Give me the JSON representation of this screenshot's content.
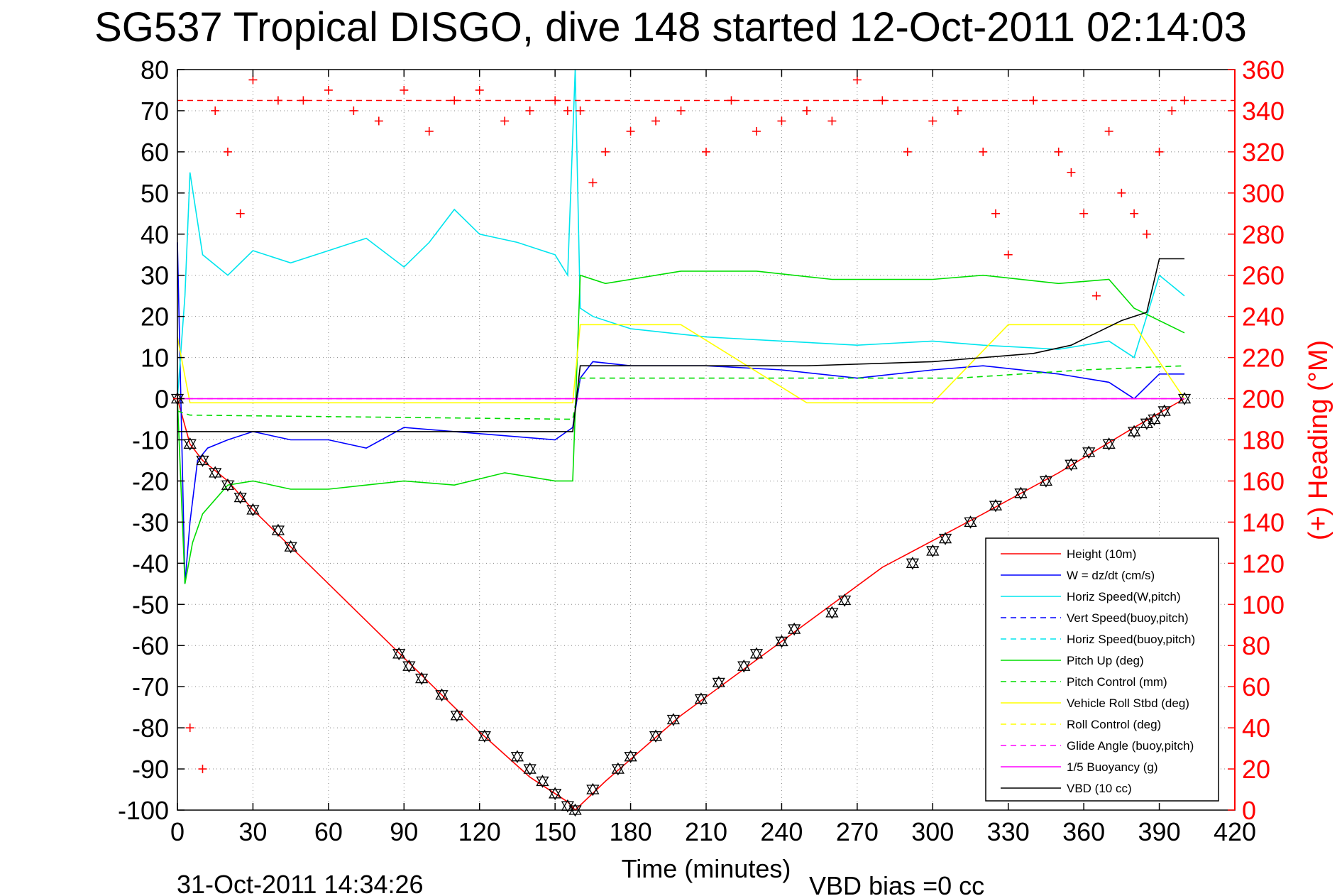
{
  "chart_data": {
    "type": "line",
    "title": "SG537 Tropical DISGO, dive 148 started 12-Oct-2011 02:14:03",
    "xlabel": "Time (minutes)",
    "ylabel_right": "(+) Heading (°M)",
    "xlim": [
      0,
      420
    ],
    "ylim": [
      -100,
      80
    ],
    "ylim_right": [
      0,
      360
    ],
    "x_ticks": [
      "0",
      "30",
      "60",
      "90",
      "120",
      "150",
      "180",
      "210",
      "240",
      "270",
      "300",
      "330",
      "360",
      "390",
      "420"
    ],
    "y_ticks": [
      "-100",
      "-90",
      "-80",
      "-70",
      "-60",
      "-50",
      "-40",
      "-30",
      "-20",
      "-10",
      "0",
      "10",
      "20",
      "30",
      "40",
      "50",
      "60",
      "70",
      "80"
    ],
    "y_ticks_right": [
      "0",
      "20",
      "40",
      "60",
      "80",
      "100",
      "120",
      "140",
      "160",
      "180",
      "200",
      "220",
      "240",
      "260",
      "280",
      "300",
      "320",
      "340",
      "360"
    ],
    "grid": true,
    "legend_position": "bottom-right",
    "footer_left": "31-Oct-2011 14:34:26",
    "footer_right": "VBD bias =0 cc",
    "series": [
      {
        "name": "Height (10m)",
        "color": "#ff0000",
        "style": "solid",
        "x": [
          0,
          5,
          10,
          20,
          30,
          45,
          60,
          90,
          105,
          120,
          140,
          155,
          158,
          170,
          200,
          240,
          280,
          320,
          350,
          380,
          400
        ],
        "y": [
          0,
          -11,
          -15,
          -20,
          -27,
          -36,
          -45,
          -63,
          -72,
          -81,
          -92,
          -98,
          -100,
          -93,
          -77,
          -59,
          -41,
          -28,
          -18,
          -7,
          0
        ]
      },
      {
        "name": "W = dz/dt (cm/s)",
        "color": "#0000ff",
        "style": "solid",
        "x": [
          0,
          3,
          5,
          8,
          12,
          20,
          30,
          45,
          60,
          75,
          90,
          110,
          130,
          150,
          157,
          160,
          165,
          180,
          210,
          240,
          270,
          300,
          320,
          350,
          370,
          380,
          390,
          400
        ],
        "y": [
          38,
          -45,
          -30,
          -15,
          -12,
          -10,
          -8,
          -10,
          -10,
          -12,
          -7,
          -8,
          -9,
          -10,
          -7,
          5,
          9,
          8,
          8,
          7,
          5,
          7,
          8,
          6,
          4,
          0,
          6,
          6
        ]
      },
      {
        "name": "Horiz Speed(W,pitch)",
        "color": "#00e5ee",
        "style": "solid",
        "x": [
          0,
          3,
          5,
          10,
          20,
          30,
          45,
          60,
          75,
          90,
          100,
          110,
          120,
          135,
          150,
          155,
          158,
          160,
          165,
          180,
          210,
          240,
          270,
          300,
          320,
          350,
          370,
          380,
          390,
          400
        ],
        "y": [
          0,
          25,
          55,
          35,
          30,
          36,
          33,
          36,
          39,
          32,
          38,
          46,
          40,
          38,
          35,
          30,
          80,
          22,
          20,
          17,
          15,
          14,
          13,
          14,
          13,
          12,
          14,
          10,
          30,
          25
        ]
      },
      {
        "name": "Vert Speed(buoy,pitch)",
        "color": "#0000ff",
        "style": "dashed",
        "x": [],
        "y": []
      },
      {
        "name": "Horiz Speed(buoy,pitch)",
        "color": "#00e5ee",
        "style": "dashed",
        "x": [],
        "y": []
      },
      {
        "name": "Pitch Up (deg)",
        "color": "#00dd00",
        "style": "solid",
        "x": [
          0,
          3,
          6,
          10,
          20,
          30,
          45,
          60,
          90,
          110,
          130,
          150,
          157,
          160,
          170,
          200,
          230,
          260,
          300,
          320,
          350,
          370,
          380,
          400
        ],
        "y": [
          0,
          -45,
          -35,
          -28,
          -21,
          -20,
          -22,
          -22,
          -20,
          -21,
          -18,
          -20,
          -20,
          30,
          28,
          31,
          31,
          29,
          29,
          30,
          28,
          29,
          22,
          16
        ]
      },
      {
        "name": "Pitch Control (mm)",
        "color": "#00dd00",
        "style": "dashed",
        "x": [
          0,
          5,
          157,
          160,
          240,
          310,
          360,
          400
        ],
        "y": [
          -3,
          -4,
          -5,
          5,
          5,
          5,
          7,
          8
        ]
      },
      {
        "name": "Vehicle Roll Stbd (deg)",
        "color": "#ffff00",
        "style": "solid",
        "x": [
          0,
          5,
          10,
          20,
          40,
          60,
          90,
          100,
          120,
          150,
          157,
          160,
          200,
          250,
          300,
          330,
          360,
          380,
          400
        ],
        "y": [
          15,
          -1,
          -1,
          -1,
          -1,
          -1,
          -1,
          -1,
          -1,
          -1,
          -1,
          18,
          18,
          -1,
          -1,
          18,
          18,
          18,
          0
        ]
      },
      {
        "name": "Roll Control (deg)",
        "color": "#ffff00",
        "style": "dashed",
        "x": [
          0,
          157,
          160,
          400
        ],
        "y": [
          0,
          0,
          0,
          0
        ]
      },
      {
        "name": "Glide Angle (buoy,pitch)",
        "color": "#ff00ff",
        "style": "dashed",
        "x": [
          0,
          400
        ],
        "y": [
          0,
          0
        ]
      },
      {
        "name": "1/5 Buoyancy (g)",
        "color": "#ff00ff",
        "style": "solid",
        "x": [
          0,
          400
        ],
        "y": [
          0,
          0
        ]
      },
      {
        "name": "VBD (10 cc)",
        "color": "#000000",
        "style": "solid",
        "x": [
          0,
          5,
          157,
          160,
          200,
          250,
          300,
          340,
          355,
          365,
          375,
          385,
          390,
          400
        ],
        "y": [
          -8,
          -8,
          -8,
          8,
          8,
          8,
          9,
          11,
          13,
          16,
          19,
          21,
          34,
          34
        ]
      }
    ],
    "heading": {
      "name": "Heading",
      "color": "#ff0000",
      "marker": "+",
      "axis": "right",
      "target": 345,
      "x": [
        0,
        5,
        10,
        15,
        20,
        25,
        30,
        40,
        50,
        60,
        70,
        80,
        90,
        100,
        110,
        120,
        130,
        140,
        150,
        155,
        160,
        165,
        170,
        180,
        190,
        200,
        210,
        220,
        230,
        240,
        250,
        260,
        270,
        280,
        290,
        300,
        310,
        320,
        325,
        330,
        340,
        350,
        355,
        360,
        365,
        370,
        375,
        380,
        385,
        390,
        395,
        400
      ],
      "y": [
        200,
        40,
        20,
        340,
        320,
        290,
        355,
        345,
        345,
        350,
        340,
        335,
        350,
        330,
        345,
        350,
        335,
        340,
        345,
        340,
        340,
        305,
        320,
        330,
        335,
        340,
        320,
        345,
        330,
        335,
        340,
        335,
        355,
        345,
        320,
        335,
        340,
        320,
        290,
        270,
        345,
        320,
        310,
        290,
        250,
        330,
        300,
        290,
        280,
        320,
        340,
        345
      ]
    },
    "markers": {
      "name": "depth samples",
      "color": "#000000",
      "marker": "triangle",
      "x": [
        0,
        5,
        10,
        15,
        20,
        25,
        30,
        40,
        45,
        88,
        92,
        97,
        105,
        111,
        122,
        135,
        140,
        145,
        150,
        155,
        158,
        165,
        175,
        180,
        190,
        197,
        208,
        215,
        225,
        230,
        240,
        245,
        260,
        265,
        292,
        300,
        305,
        315,
        325,
        335,
        345,
        355,
        362,
        370,
        380,
        385,
        388,
        392,
        400
      ],
      "y": [
        0,
        -11,
        -15,
        -18,
        -21,
        -24,
        -27,
        -32,
        -36,
        -62,
        -65,
        -68,
        -72,
        -77,
        -82,
        -87,
        -90,
        -93,
        -96,
        -99,
        -100,
        -95,
        -90,
        -87,
        -82,
        -78,
        -73,
        -69,
        -65,
        -62,
        -59,
        -56,
        -52,
        -49,
        -40,
        -37,
        -34,
        -30,
        -26,
        -23,
        -20,
        -16,
        -13,
        -11,
        -8,
        -6,
        -5,
        -3,
        0
      ]
    }
  },
  "legend": {
    "items": [
      {
        "label": "Height (10m)",
        "color": "#ff0000",
        "style": "solid"
      },
      {
        "label": "W = dz/dt (cm/s)",
        "color": "#0000ff",
        "style": "solid"
      },
      {
        "label": "Horiz Speed(W,pitch)",
        "color": "#00e5ee",
        "style": "solid"
      },
      {
        "label": "Vert Speed(buoy,pitch)",
        "color": "#0000ff",
        "style": "dashed"
      },
      {
        "label": "Horiz Speed(buoy,pitch)",
        "color": "#00e5ee",
        "style": "dashed"
      },
      {
        "label": "Pitch Up (deg)",
        "color": "#00dd00",
        "style": "solid"
      },
      {
        "label": "Pitch Control (mm)",
        "color": "#00dd00",
        "style": "dashed"
      },
      {
        "label": "Vehicle Roll Stbd (deg)",
        "color": "#ffff00",
        "style": "solid"
      },
      {
        "label": "Roll Control (deg)",
        "color": "#ffff00",
        "style": "dashed"
      },
      {
        "label": "Glide Angle (buoy,pitch)",
        "color": "#ff00ff",
        "style": "dashed"
      },
      {
        "label": "1/5 Buoyancy (g)",
        "color": "#ff00ff",
        "style": "solid"
      },
      {
        "label": "VBD (10 cc)",
        "color": "#000000",
        "style": "solid"
      }
    ]
  }
}
